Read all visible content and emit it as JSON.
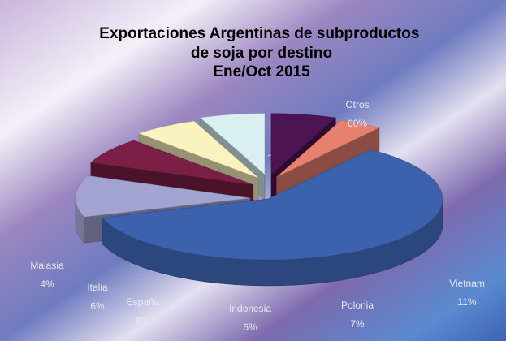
{
  "chart_data": {
    "type": "pie3d",
    "title": [
      "Exportaciones Argentinas de subproductos",
      "de soja por destino"
    ],
    "subtitle": "Ene/Oct 2015",
    "categories": [
      "Otros",
      "Vietnam",
      "Polonia",
      "Indonesia",
      "España",
      "Italia",
      "Malasia"
    ],
    "values": [
      60,
      11,
      7,
      6,
      6,
      6,
      4
    ],
    "value_labels": [
      "60%",
      "11%",
      "7%",
      "6%",
      "6%",
      "6%",
      "4%"
    ],
    "colors": [
      "#3d62ad",
      "#a3a3d2",
      "#7c1f46",
      "#fbf3bf",
      "#d9eff2",
      "#4d1454",
      "#e8806f"
    ]
  }
}
